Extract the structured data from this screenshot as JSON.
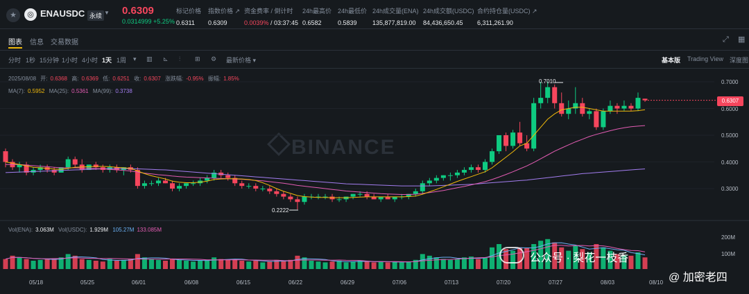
{
  "header": {
    "star_icon": "star-icon",
    "coin_icon": "ena-coin-icon",
    "symbol": "ENAUSDC",
    "contract_type": "永续",
    "last_price": "0.6309",
    "change": "0.0314999 +5.25%",
    "stats": [
      {
        "label": "标记价格",
        "value": "0.6311"
      },
      {
        "label": "指数价格 ↗",
        "value": "0.6309"
      },
      {
        "label": "资金费率 / 倒计时",
        "value_red": "0.0039%",
        "value_rest": " / 03:37:45"
      },
      {
        "label": "24h最高价",
        "value": "0.6582"
      },
      {
        "label": "24h最低价",
        "value": "0.5839"
      },
      {
        "label": "24h成交量(ENA)",
        "value": "135,877,819.00"
      },
      {
        "label": "24h成交额(USDC)",
        "value": "84,436,650.45"
      },
      {
        "label": "合约持仓量(USDC) ↗",
        "value": "6,311,261.90"
      }
    ]
  },
  "tabs": [
    "图表",
    "信息",
    "交易数据"
  ],
  "intervals": [
    "分时",
    "1秒",
    "15分钟",
    "1小时",
    "4小时",
    "1天",
    "1周"
  ],
  "latest_price_menu": "最新价格",
  "views": [
    "基本版",
    "Trading View",
    "深度图"
  ],
  "ohlc": {
    "date": "2025/08/08",
    "open_label": "开:",
    "open": "0.6368",
    "high_label": "高:",
    "high": "0.6369",
    "low_label": "低:",
    "low": "0.6251",
    "close_label": "收:",
    "close": "0.6307",
    "chg_label": "涨跌幅:",
    "chg": "-0.95%",
    "amp_label": "振幅:",
    "amp": "1.85%"
  },
  "ma": {
    "ma7_label": "MA(7):",
    "ma7": "0.5952",
    "ma25_label": "MA(25):",
    "ma25": "0.5361",
    "ma99_label": "MA(99):",
    "ma99": "0.3738"
  },
  "vol": {
    "ena_label": "Vol(ENA):",
    "ena": "3.063M",
    "usdc_label": "Vol(USDC):",
    "usdc": "1.929M",
    "v1": "105.27M",
    "v2": "133.085M"
  },
  "watermark": "BINANCE",
  "price_axis": [
    "0.7000",
    "0.6000",
    "0.5000",
    "0.4000",
    "0.3000"
  ],
  "vol_axis": [
    "200M",
    "100M"
  ],
  "current_price_tag": "0.6307",
  "high_marker": "0.7010",
  "low_marker": "0.2222",
  "date_axis": [
    "05/18",
    "05/25",
    "06/01",
    "06/08",
    "06/15",
    "06/22",
    "06/29",
    "07/06",
    "07/13",
    "07/20",
    "07/27",
    "08/03",
    "08/10"
  ],
  "overlay_text_1": "公众号 · 梨花一枝香",
  "overlay_text_2": "@ 加密老四",
  "colors": {
    "up": "#0ecb81",
    "down": "#f6465d",
    "ma7": "#f0b90b",
    "ma25": "#e35cb3",
    "ma99": "#a37df0",
    "accent": "#f0b90b"
  },
  "chart_data": {
    "type": "candlestick",
    "interval": "1天",
    "ylim": [
      0.2,
      0.72
    ],
    "candles": [
      [
        0.44,
        0.45,
        0.38,
        0.4
      ],
      [
        0.4,
        0.41,
        0.37,
        0.38
      ],
      [
        0.38,
        0.4,
        0.36,
        0.39
      ],
      [
        0.39,
        0.4,
        0.35,
        0.36
      ],
      [
        0.36,
        0.38,
        0.35,
        0.37
      ],
      [
        0.37,
        0.39,
        0.36,
        0.38
      ],
      [
        0.38,
        0.39,
        0.36,
        0.37
      ],
      [
        0.37,
        0.38,
        0.35,
        0.36
      ],
      [
        0.36,
        0.38,
        0.36,
        0.38
      ],
      [
        0.38,
        0.42,
        0.37,
        0.41
      ],
      [
        0.41,
        0.42,
        0.38,
        0.39
      ],
      [
        0.39,
        0.41,
        0.36,
        0.37
      ],
      [
        0.37,
        0.39,
        0.37,
        0.39
      ],
      [
        0.39,
        0.4,
        0.37,
        0.38
      ],
      [
        0.38,
        0.39,
        0.36,
        0.37
      ],
      [
        0.37,
        0.39,
        0.36,
        0.38
      ],
      [
        0.38,
        0.39,
        0.36,
        0.37
      ],
      [
        0.37,
        0.38,
        0.35,
        0.38
      ],
      [
        0.38,
        0.39,
        0.36,
        0.37
      ],
      [
        0.37,
        0.38,
        0.3,
        0.31
      ],
      [
        0.31,
        0.33,
        0.3,
        0.32
      ],
      [
        0.32,
        0.33,
        0.31,
        0.32
      ],
      [
        0.32,
        0.34,
        0.31,
        0.33
      ],
      [
        0.33,
        0.34,
        0.32,
        0.32
      ],
      [
        0.32,
        0.33,
        0.29,
        0.3
      ],
      [
        0.3,
        0.32,
        0.29,
        0.31
      ],
      [
        0.31,
        0.32,
        0.3,
        0.32
      ],
      [
        0.32,
        0.33,
        0.31,
        0.32
      ],
      [
        0.32,
        0.34,
        0.31,
        0.33
      ],
      [
        0.33,
        0.35,
        0.32,
        0.34
      ],
      [
        0.34,
        0.37,
        0.33,
        0.36
      ],
      [
        0.36,
        0.37,
        0.34,
        0.35
      ],
      [
        0.35,
        0.36,
        0.33,
        0.34
      ],
      [
        0.34,
        0.35,
        0.31,
        0.32
      ],
      [
        0.32,
        0.33,
        0.3,
        0.31
      ],
      [
        0.31,
        0.32,
        0.3,
        0.31
      ],
      [
        0.31,
        0.32,
        0.29,
        0.3
      ],
      [
        0.3,
        0.31,
        0.29,
        0.3
      ],
      [
        0.3,
        0.31,
        0.28,
        0.29
      ],
      [
        0.29,
        0.3,
        0.27,
        0.28
      ],
      [
        0.28,
        0.29,
        0.26,
        0.27
      ],
      [
        0.27,
        0.28,
        0.25,
        0.26
      ],
      [
        0.26,
        0.27,
        0.222,
        0.25
      ],
      [
        0.25,
        0.28,
        0.24,
        0.27
      ],
      [
        0.27,
        0.28,
        0.26,
        0.27
      ],
      [
        0.27,
        0.28,
        0.26,
        0.27
      ],
      [
        0.27,
        0.28,
        0.26,
        0.27
      ],
      [
        0.27,
        0.28,
        0.25,
        0.26
      ],
      [
        0.26,
        0.27,
        0.25,
        0.26
      ],
      [
        0.26,
        0.27,
        0.25,
        0.27
      ],
      [
        0.27,
        0.28,
        0.26,
        0.28
      ],
      [
        0.28,
        0.29,
        0.27,
        0.28
      ],
      [
        0.28,
        0.29,
        0.26,
        0.27
      ],
      [
        0.27,
        0.28,
        0.26,
        0.26
      ],
      [
        0.26,
        0.27,
        0.25,
        0.27
      ],
      [
        0.27,
        0.28,
        0.26,
        0.26
      ],
      [
        0.26,
        0.27,
        0.25,
        0.27
      ],
      [
        0.27,
        0.28,
        0.26,
        0.27
      ],
      [
        0.27,
        0.28,
        0.26,
        0.28
      ],
      [
        0.28,
        0.3,
        0.27,
        0.29
      ],
      [
        0.29,
        0.33,
        0.28,
        0.32
      ],
      [
        0.32,
        0.34,
        0.31,
        0.33
      ],
      [
        0.33,
        0.35,
        0.32,
        0.34
      ],
      [
        0.34,
        0.35,
        0.33,
        0.35
      ],
      [
        0.35,
        0.36,
        0.33,
        0.35
      ],
      [
        0.35,
        0.37,
        0.34,
        0.36
      ],
      [
        0.36,
        0.38,
        0.35,
        0.37
      ],
      [
        0.37,
        0.39,
        0.36,
        0.38
      ],
      [
        0.38,
        0.39,
        0.36,
        0.37
      ],
      [
        0.37,
        0.41,
        0.36,
        0.4
      ],
      [
        0.4,
        0.45,
        0.39,
        0.44
      ],
      [
        0.44,
        0.5,
        0.43,
        0.5
      ],
      [
        0.5,
        0.51,
        0.44,
        0.46
      ],
      [
        0.46,
        0.52,
        0.45,
        0.51
      ],
      [
        0.51,
        0.55,
        0.46,
        0.47
      ],
      [
        0.47,
        0.5,
        0.44,
        0.45
      ],
      [
        0.45,
        0.64,
        0.44,
        0.62
      ],
      [
        0.62,
        0.7,
        0.6,
        0.64
      ],
      [
        0.64,
        0.701,
        0.62,
        0.68
      ],
      [
        0.68,
        0.69,
        0.6,
        0.62
      ],
      [
        0.62,
        0.66,
        0.57,
        0.58
      ],
      [
        0.58,
        0.63,
        0.56,
        0.6
      ],
      [
        0.6,
        0.68,
        0.58,
        0.62
      ],
      [
        0.62,
        0.64,
        0.57,
        0.58
      ],
      [
        0.58,
        0.6,
        0.56,
        0.59
      ],
      [
        0.59,
        0.6,
        0.52,
        0.53
      ],
      [
        0.53,
        0.6,
        0.52,
        0.59
      ],
      [
        0.59,
        0.63,
        0.58,
        0.61
      ],
      [
        0.61,
        0.62,
        0.58,
        0.6
      ],
      [
        0.6,
        0.63,
        0.59,
        0.61
      ],
      [
        0.61,
        0.62,
        0.59,
        0.6
      ],
      [
        0.6,
        0.66,
        0.59,
        0.64
      ],
      [
        0.6368,
        0.6369,
        0.6251,
        0.6307
      ]
    ],
    "ma7": [
      0.4,
      0.395,
      0.39,
      0.385,
      0.38,
      0.378,
      0.376,
      0.373,
      0.372,
      0.376,
      0.38,
      0.381,
      0.382,
      0.383,
      0.383,
      0.382,
      0.38,
      0.378,
      0.376,
      0.366,
      0.356,
      0.348,
      0.342,
      0.336,
      0.328,
      0.324,
      0.322,
      0.322,
      0.324,
      0.328,
      0.334,
      0.336,
      0.337,
      0.337,
      0.336,
      0.334,
      0.33,
      0.322,
      0.312,
      0.3,
      0.29,
      0.282,
      0.274,
      0.27,
      0.268,
      0.267,
      0.267,
      0.266,
      0.266,
      0.266,
      0.267,
      0.268,
      0.269,
      0.269,
      0.269,
      0.269,
      0.269,
      0.269,
      0.27,
      0.272,
      0.279,
      0.288,
      0.297,
      0.307,
      0.317,
      0.327,
      0.336,
      0.345,
      0.354,
      0.363,
      0.378,
      0.398,
      0.418,
      0.438,
      0.46,
      0.47,
      0.5,
      0.53,
      0.56,
      0.58,
      0.595,
      0.6,
      0.605,
      0.605,
      0.6,
      0.595,
      0.59,
      0.59,
      0.59,
      0.59,
      0.59,
      0.592,
      0.5952
    ],
    "ma25": [
      0.39,
      0.39,
      0.39,
      0.388,
      0.386,
      0.384,
      0.382,
      0.38,
      0.378,
      0.378,
      0.378,
      0.377,
      0.376,
      0.375,
      0.374,
      0.372,
      0.37,
      0.368,
      0.366,
      0.362,
      0.358,
      0.355,
      0.352,
      0.35,
      0.347,
      0.345,
      0.343,
      0.342,
      0.341,
      0.34,
      0.339,
      0.338,
      0.337,
      0.336,
      0.335,
      0.333,
      0.331,
      0.329,
      0.326,
      0.323,
      0.32,
      0.316,
      0.312,
      0.309,
      0.306,
      0.303,
      0.3,
      0.297,
      0.294,
      0.291,
      0.289,
      0.287,
      0.285,
      0.283,
      0.281,
      0.28,
      0.279,
      0.278,
      0.278,
      0.279,
      0.282,
      0.285,
      0.289,
      0.293,
      0.298,
      0.303,
      0.308,
      0.314,
      0.32,
      0.326,
      0.334,
      0.343,
      0.353,
      0.363,
      0.374,
      0.385,
      0.398,
      0.412,
      0.426,
      0.44,
      0.452,
      0.464,
      0.475,
      0.485,
      0.495,
      0.503,
      0.51,
      0.517,
      0.523,
      0.528,
      0.532,
      0.534,
      0.5361
    ],
    "ma99": [
      0.36,
      0.361,
      0.362,
      0.363,
      0.364,
      0.365,
      0.366,
      0.367,
      0.368,
      0.369,
      0.37,
      0.371,
      0.372,
      0.373,
      0.374,
      0.375,
      0.375,
      0.375,
      0.375,
      0.374,
      0.373,
      0.372,
      0.371,
      0.37,
      0.368,
      0.366,
      0.364,
      0.362,
      0.36,
      0.358,
      0.356,
      0.354,
      0.352,
      0.35,
      0.348,
      0.346,
      0.344,
      0.342,
      0.34,
      0.338,
      0.336,
      0.334,
      0.332,
      0.33,
      0.328,
      0.326,
      0.324,
      0.322,
      0.32,
      0.318,
      0.317,
      0.316,
      0.315,
      0.314,
      0.313,
      0.312,
      0.311,
      0.31,
      0.31,
      0.31,
      0.31,
      0.31,
      0.311,
      0.312,
      0.313,
      0.314,
      0.315,
      0.316,
      0.318,
      0.32,
      0.322,
      0.324,
      0.326,
      0.328,
      0.33,
      0.332,
      0.335,
      0.338,
      0.341,
      0.344,
      0.347,
      0.35,
      0.353,
      0.356,
      0.358,
      0.36,
      0.362,
      0.364,
      0.366,
      0.368,
      0.37,
      0.372,
      0.3738
    ],
    "volumes": [
      60,
      80,
      70,
      60,
      50,
      55,
      60,
      65,
      70,
      90,
      80,
      60,
      55,
      50,
      45,
      60,
      50,
      55,
      60,
      90,
      70,
      60,
      55,
      50,
      60,
      55,
      50,
      45,
      50,
      55,
      70,
      60,
      55,
      60,
      50,
      45,
      50,
      40,
      45,
      55,
      50,
      55,
      80,
      70,
      50,
      45,
      40,
      45,
      50,
      40,
      45,
      50,
      45,
      40,
      45,
      40,
      45,
      40,
      45,
      55,
      90,
      80,
      70,
      60,
      55,
      60,
      70,
      75,
      60,
      70,
      130,
      150,
      120,
      110,
      130,
      125,
      150,
      170,
      180,
      160,
      130,
      110,
      140,
      120,
      100,
      150,
      130,
      110,
      90,
      85,
      80,
      100,
      70
    ]
  }
}
